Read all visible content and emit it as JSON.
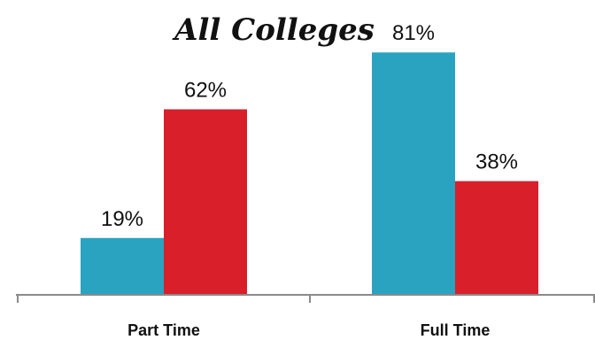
{
  "chart_data": {
    "type": "bar",
    "title": "All Colleges",
    "categories": [
      "Part Time",
      "Full Time"
    ],
    "series": [
      {
        "values": [
          19,
          81
        ],
        "color": "#2aa3c0",
        "labels": [
          "19%",
          "81%"
        ]
      },
      {
        "values": [
          62,
          38
        ],
        "color": "#d81f2a",
        "labels": [
          "62%",
          "38%"
        ]
      }
    ],
    "xlabel": "",
    "ylabel": "",
    "ylim": [
      0,
      100
    ],
    "grid": false,
    "legend": "none"
  }
}
